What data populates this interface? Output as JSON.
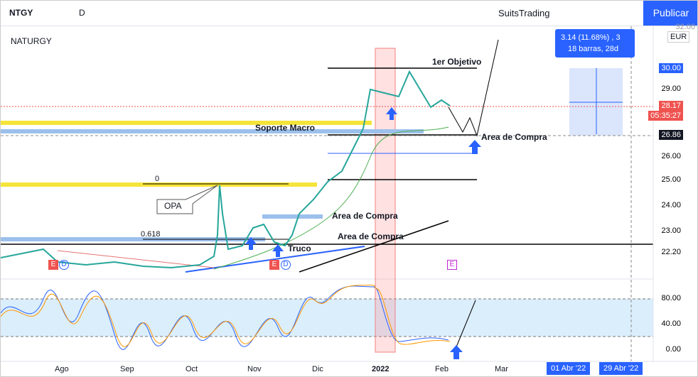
{
  "toolbar": {
    "symbol": "NTGY",
    "interval": "D",
    "account": "SuitsTrading",
    "publish": "Publicar"
  },
  "chart": {
    "title": "NATURGY",
    "currency": "EUR",
    "measure": {
      "change": "3.14 (11.68%) , 3",
      "bars": "18 barras, 28d"
    },
    "price_axis": {
      "top": "32.00",
      "labels": [
        "30.00",
        "29.00",
        "26.00",
        "25.00",
        "24.00",
        "23.00",
        "22.20"
      ],
      "last": "28.17",
      "countdown": "05:35:27",
      "crosshair": "26.86"
    },
    "oscillator_axis": [
      "80.00",
      "40.00",
      "0.00"
    ],
    "time_axis": [
      "Ago",
      "Sep",
      "Oct",
      "Nov",
      "Dic",
      "2022",
      "Feb",
      "Mar"
    ],
    "range_labels": [
      "01 Abr '22",
      "29 Abr '22"
    ],
    "annotations": {
      "target": "1er Objetivo",
      "macro_support": "Soporte Macro",
      "buy_zones": [
        "Area de Compra",
        "Area de Compra",
        "Area de Compra"
      ],
      "trick": "Truco",
      "bid": "OPA",
      "fib_0": "0",
      "fib_618": "0.618"
    },
    "events": [
      "E",
      "E",
      "E",
      "D",
      "D"
    ]
  }
}
